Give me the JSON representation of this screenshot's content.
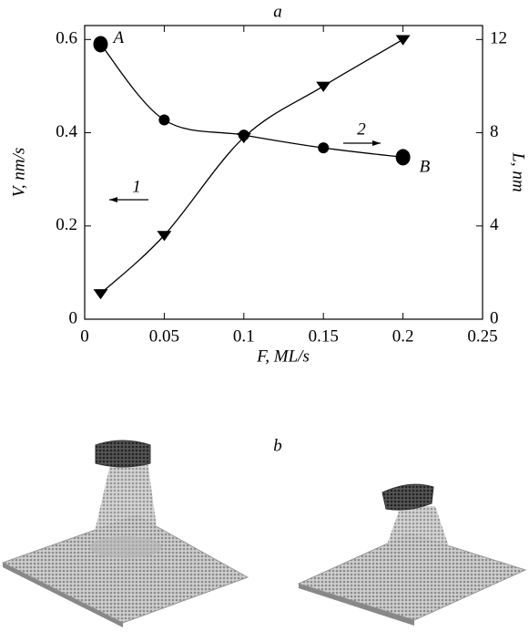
{
  "chart_data": {
    "type": "scatter",
    "title": "a",
    "xlabel": "F, ML/s",
    "ylabel": "V, nm/s",
    "y2label": "L, nm",
    "x": [
      0.01,
      0.05,
      0.1,
      0.15,
      0.2
    ],
    "series": [
      {
        "name": "1",
        "marker": "triangle",
        "color": "#000000",
        "values": [
          0.055,
          0.18,
          0.39,
          0.5,
          0.6
        ]
      },
      {
        "name": "2",
        "marker": "circle",
        "color": "#000000",
        "axis": "y2",
        "values": [
          11.8,
          8.55,
          7.9,
          7.35,
          6.95
        ]
      }
    ],
    "xlim": [
      0,
      0.25
    ],
    "xticks": [
      0,
      0.05,
      0.1,
      0.15,
      0.2,
      0.25
    ],
    "ylim": [
      0,
      0.63
    ],
    "yticks": [
      0,
      0.2,
      0.4,
      0.6
    ],
    "y2lim": [
      0,
      12.6
    ],
    "y2ticks": [
      0,
      4,
      8,
      12
    ],
    "annotations": [
      "A",
      "B"
    ]
  },
  "panel_b": {
    "label": "b"
  }
}
